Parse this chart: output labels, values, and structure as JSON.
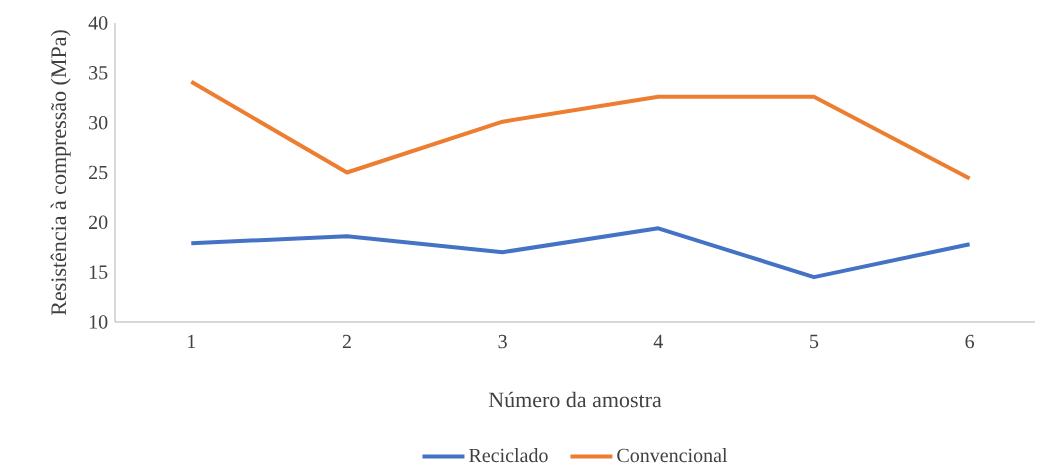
{
  "chart_data": {
    "type": "line",
    "xlabel": "Número da amostra",
    "ylabel": "Resistência à compressão (MPa)",
    "categories": [
      "1",
      "2",
      "3",
      "4",
      "5",
      "6"
    ],
    "series": [
      {
        "name": "Reciclado",
        "color": "#4472c4",
        "values": [
          17.9,
          18.6,
          17.0,
          19.4,
          14.5,
          17.8
        ]
      },
      {
        "name": "Convencional",
        "color": "#ed7d31",
        "values": [
          34.1,
          25.0,
          30.1,
          32.6,
          32.6,
          24.4
        ]
      }
    ],
    "ylim": [
      10,
      40
    ],
    "yticks": [
      10,
      15,
      20,
      25,
      30,
      35,
      40
    ],
    "legend": "bottom",
    "marker": "none",
    "line_style": "solid"
  }
}
